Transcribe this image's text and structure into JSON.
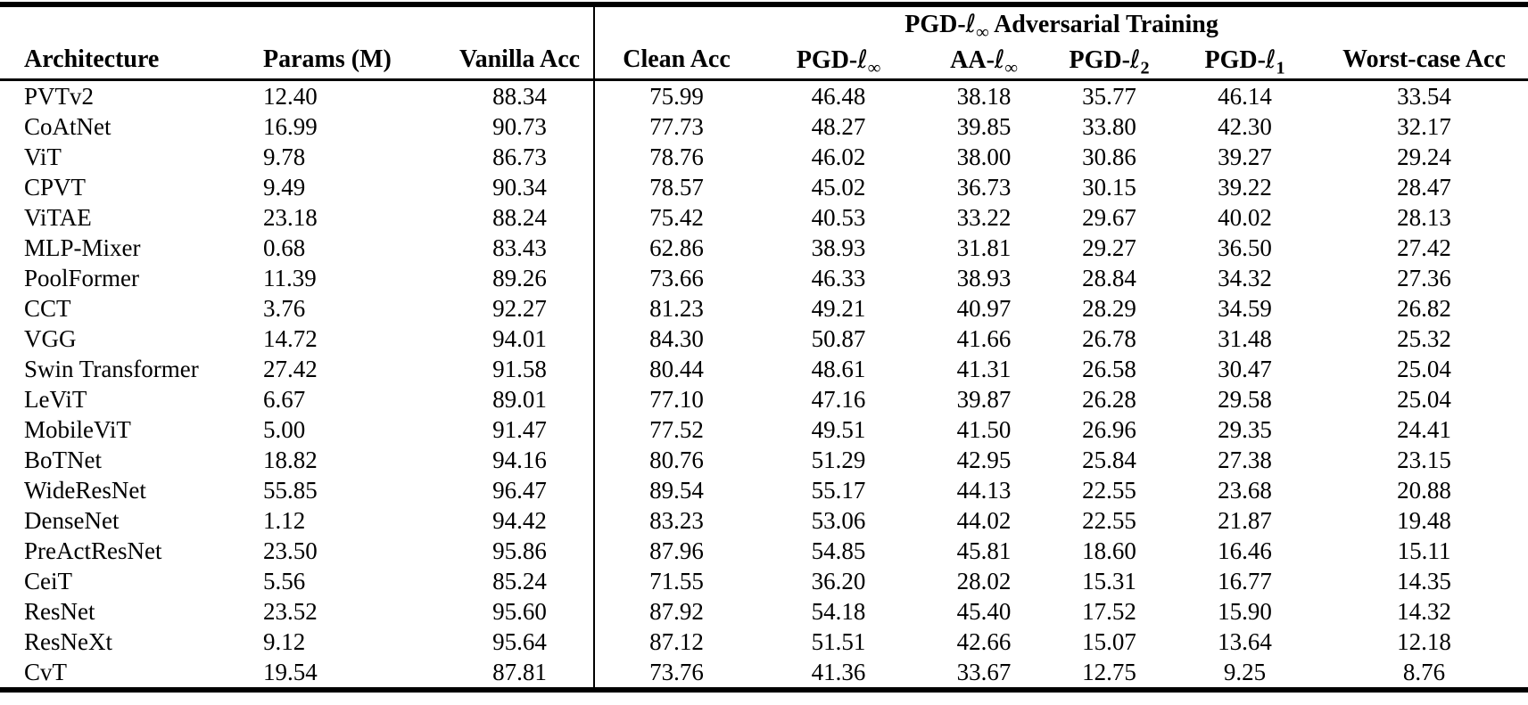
{
  "table": {
    "group_header": {
      "pre": "PGD-",
      "ell": "ℓ",
      "sub": "∞",
      "post": " Adversarial Training"
    },
    "col_ids": [
      "architecture",
      "params-m",
      "vanilla-acc",
      "clean-acc",
      "pgd-linf",
      "aa-linf",
      "pgd-l2",
      "pgd-l1",
      "worst-case-acc"
    ],
    "columns": [
      {
        "pre": "Architecture"
      },
      {
        "pre": "Params (M)"
      },
      {
        "pre": "Vanilla Acc"
      },
      {
        "pre": "Clean Acc"
      },
      {
        "pre": "PGD-",
        "ell": "ℓ",
        "sub": "∞"
      },
      {
        "pre": "AA-",
        "ell": "ℓ",
        "sub": "∞"
      },
      {
        "pre": "PGD-",
        "ell": "ℓ",
        "sub": "2"
      },
      {
        "pre": "PGD-",
        "ell": "ℓ",
        "sub": "1"
      },
      {
        "pre": "Worst-case Acc"
      }
    ],
    "rows": [
      [
        "PVTv2",
        "12.40",
        "88.34",
        "75.99",
        "46.48",
        "38.18",
        "35.77",
        "46.14",
        "33.54"
      ],
      [
        "CoAtNet",
        "16.99",
        "90.73",
        "77.73",
        "48.27",
        "39.85",
        "33.80",
        "42.30",
        "32.17"
      ],
      [
        "ViT",
        "9.78",
        "86.73",
        "78.76",
        "46.02",
        "38.00",
        "30.86",
        "39.27",
        "29.24"
      ],
      [
        "CPVT",
        "9.49",
        "90.34",
        "78.57",
        "45.02",
        "36.73",
        "30.15",
        "39.22",
        "28.47"
      ],
      [
        "ViTAE",
        "23.18",
        "88.24",
        "75.42",
        "40.53",
        "33.22",
        "29.67",
        "40.02",
        "28.13"
      ],
      [
        "MLP-Mixer",
        "0.68",
        "83.43",
        "62.86",
        "38.93",
        "31.81",
        "29.27",
        "36.50",
        "27.42"
      ],
      [
        "PoolFormer",
        "11.39",
        "89.26",
        "73.66",
        "46.33",
        "38.93",
        "28.84",
        "34.32",
        "27.36"
      ],
      [
        "CCT",
        "3.76",
        "92.27",
        "81.23",
        "49.21",
        "40.97",
        "28.29",
        "34.59",
        "26.82"
      ],
      [
        "VGG",
        "14.72",
        "94.01",
        "84.30",
        "50.87",
        "41.66",
        "26.78",
        "31.48",
        "25.32"
      ],
      [
        "Swin Transformer",
        "27.42",
        "91.58",
        "80.44",
        "48.61",
        "41.31",
        "26.58",
        "30.47",
        "25.04"
      ],
      [
        "LeViT",
        "6.67",
        "89.01",
        "77.10",
        "47.16",
        "39.87",
        "26.28",
        "29.58",
        "25.04"
      ],
      [
        "MobileViT",
        "5.00",
        "91.47",
        "77.52",
        "49.51",
        "41.50",
        "26.96",
        "29.35",
        "24.41"
      ],
      [
        "BoTNet",
        "18.82",
        "94.16",
        "80.76",
        "51.29",
        "42.95",
        "25.84",
        "27.38",
        "23.15"
      ],
      [
        "WideResNet",
        "55.85",
        "96.47",
        "89.54",
        "55.17",
        "44.13",
        "22.55",
        "23.68",
        "20.88"
      ],
      [
        "DenseNet",
        "1.12",
        "94.42",
        "83.23",
        "53.06",
        "44.02",
        "22.55",
        "21.87",
        "19.48"
      ],
      [
        "PreActResNet",
        "23.50",
        "95.86",
        "87.96",
        "54.85",
        "45.81",
        "18.60",
        "16.46",
        "15.11"
      ],
      [
        "CeiT",
        "5.56",
        "85.24",
        "71.55",
        "36.20",
        "28.02",
        "15.31",
        "16.77",
        "14.35"
      ],
      [
        "ResNet",
        "23.52",
        "95.60",
        "87.92",
        "54.18",
        "45.40",
        "17.52",
        "15.90",
        "14.32"
      ],
      [
        "ResNeXt",
        "9.12",
        "95.64",
        "87.12",
        "51.51",
        "42.66",
        "15.07",
        "13.64",
        "12.18"
      ],
      [
        "CvT",
        "19.54",
        "87.81",
        "73.76",
        "41.36",
        "33.67",
        "12.75",
        "9.25",
        "8.76"
      ]
    ]
  }
}
